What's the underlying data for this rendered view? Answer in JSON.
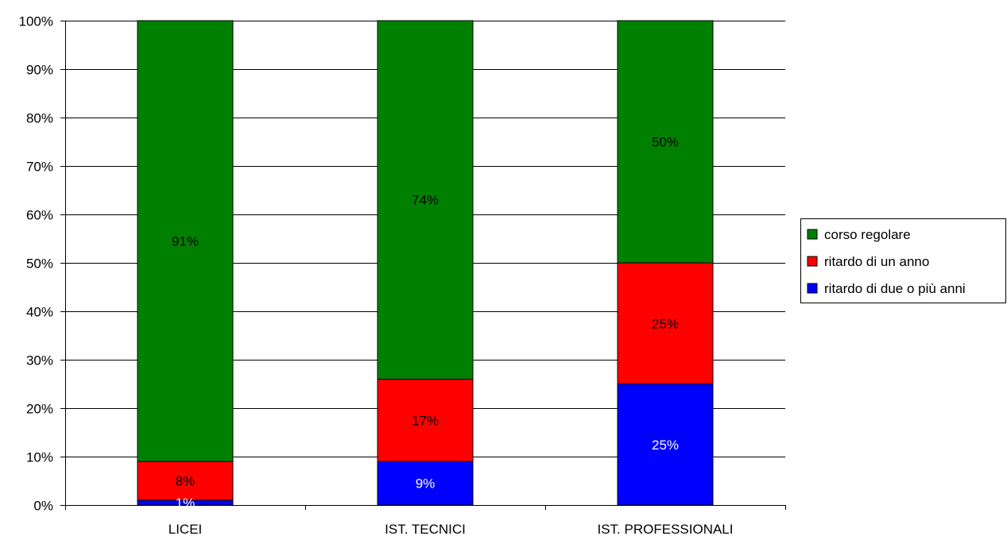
{
  "chart_data": {
    "type": "bar",
    "stacked": true,
    "percent_stacked": true,
    "title": "",
    "xlabel": "",
    "ylabel": "",
    "ylim": [
      0,
      100
    ],
    "y_ticks": [
      "0%",
      "10%",
      "20%",
      "30%",
      "40%",
      "50%",
      "60%",
      "70%",
      "80%",
      "90%",
      "100%"
    ],
    "grid": true,
    "legend_position": "right",
    "categories": [
      "LICEI",
      "IST. TECNICI",
      "IST. PROFESSIONALI"
    ],
    "series": [
      {
        "name": "ritardo di due o più anni",
        "color": "#0000ff",
        "label_color": "#ffffff",
        "values": [
          1,
          9,
          25
        ],
        "labels": [
          "1%",
          "9%",
          "25%"
        ]
      },
      {
        "name": "ritardo di un anno",
        "color": "#ff0000",
        "label_color": "#000000",
        "values": [
          8,
          17,
          25
        ],
        "labels": [
          "8%",
          "17%",
          "25%"
        ]
      },
      {
        "name": "corso regolare",
        "color": "#008000",
        "label_color": "#000000",
        "values": [
          91,
          74,
          50
        ],
        "labels": [
          "91%",
          "74%",
          "50%"
        ]
      }
    ],
    "legend_order": [
      "corso regolare",
      "ritardo di un anno",
      "ritardo di due o più anni"
    ]
  }
}
